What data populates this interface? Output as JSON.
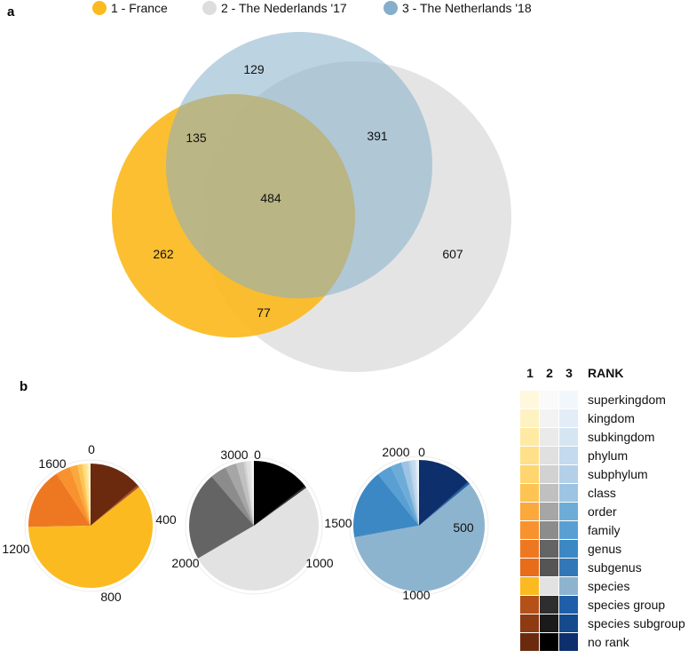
{
  "panels": {
    "a": "a",
    "b": "b"
  },
  "chart_data": [
    {
      "type": "venn",
      "title": "",
      "legend": [
        {
          "name": "1 - France",
          "color": "#FBBA20"
        },
        {
          "name": "2 - The Nederlands '17",
          "color": "#DDDDDD"
        },
        {
          "name": "3 - The Netherlands '18",
          "color": "#85AECB"
        }
      ],
      "regions": [
        {
          "sets": [
            "3"
          ],
          "value": 129
        },
        {
          "sets": [
            "1",
            "3"
          ],
          "value": 135
        },
        {
          "sets": [
            "2",
            "3"
          ],
          "value": 391
        },
        {
          "sets": [
            "1",
            "2",
            "3"
          ],
          "value": 484
        },
        {
          "sets": [
            "1"
          ],
          "value": 262
        },
        {
          "sets": [
            "2"
          ],
          "value": 607
        },
        {
          "sets": [
            "1",
            "2"
          ],
          "value": 77
        }
      ]
    },
    {
      "type": "pie",
      "name": "1 - France",
      "total": 1623,
      "ticks": [
        "0",
        "400",
        "800",
        "1200",
        "1600"
      ],
      "slices": [
        {
          "rank": "superkingdom",
          "value": 4,
          "color": "#FFF8DC"
        },
        {
          "rank": "kingdom",
          "value": 6,
          "color": "#FFF2C2"
        },
        {
          "rank": "subkingdom",
          "value": 6,
          "color": "#FFEAA3"
        },
        {
          "rank": "phylum",
          "value": 12,
          "color": "#FFE08A"
        },
        {
          "rank": "subphylum",
          "value": 8,
          "color": "#FFD56F"
        },
        {
          "rank": "class",
          "value": 20,
          "color": "#FDC453"
        },
        {
          "rank": "order",
          "value": 32,
          "color": "#FBA83C"
        },
        {
          "rank": "family",
          "value": 62,
          "color": "#F8922E"
        },
        {
          "rank": "genus",
          "value": 256,
          "color": "#EE7821"
        },
        {
          "rank": "subgenus",
          "value": 5,
          "color": "#E86D1B"
        },
        {
          "rank": "species",
          "value": 980,
          "color": "#FBBA20"
        },
        {
          "rank": "species group",
          "value": 6,
          "color": "#B4501A"
        },
        {
          "rank": "species subgroup",
          "value": 4,
          "color": "#8E3A12"
        },
        {
          "rank": "no rank",
          "value": 222,
          "color": "#6B2A0E"
        }
      ]
    },
    {
      "type": "pie",
      "name": "2 - The Nederlands '17",
      "total": 3200,
      "ticks": [
        "0",
        "1000",
        "2000",
        "3000"
      ],
      "slices": [
        {
          "rank": "superkingdom",
          "value": 8,
          "color": "#FAFAFA"
        },
        {
          "rank": "kingdom",
          "value": 12,
          "color": "#F3F3F3"
        },
        {
          "rank": "subkingdom",
          "value": 12,
          "color": "#EAEAEA"
        },
        {
          "rank": "phylum",
          "value": 30,
          "color": "#E0E0E0"
        },
        {
          "rank": "subphylum",
          "value": 20,
          "color": "#D2D2D2"
        },
        {
          "rank": "class",
          "value": 60,
          "color": "#C0C0C0"
        },
        {
          "rank": "order",
          "value": 90,
          "color": "#A6A6A6"
        },
        {
          "rank": "family",
          "value": 130,
          "color": "#8C8C8C"
        },
        {
          "rank": "genus",
          "value": 700,
          "color": "#646464"
        },
        {
          "rank": "subgenus",
          "value": 8,
          "color": "#555555"
        },
        {
          "rank": "species",
          "value": 1650,
          "color": "#E2E2E2"
        },
        {
          "rank": "species group",
          "value": 10,
          "color": "#2E2E2E"
        },
        {
          "rank": "species subgroup",
          "value": 6,
          "color": "#1A1A1A"
        },
        {
          "rank": "no rank",
          "value": 464,
          "color": "#000000"
        }
      ]
    },
    {
      "type": "pie",
      "name": "3 - The Netherlands '18",
      "total": 2200,
      "ticks": [
        "0",
        "500",
        "1000",
        "1500",
        "2000"
      ],
      "slices": [
        {
          "rank": "superkingdom",
          "value": 6,
          "color": "#F2F7FC"
        },
        {
          "rank": "kingdom",
          "value": 8,
          "color": "#E3EDF7"
        },
        {
          "rank": "subkingdom",
          "value": 8,
          "color": "#D6E5F2"
        },
        {
          "rank": "phylum",
          "value": 20,
          "color": "#C4DAEE"
        },
        {
          "rank": "subphylum",
          "value": 14,
          "color": "#B3D0E8"
        },
        {
          "rank": "class",
          "value": 40,
          "color": "#9DC4E2"
        },
        {
          "rank": "order",
          "value": 60,
          "color": "#6EACD8"
        },
        {
          "rank": "family",
          "value": 80,
          "color": "#5A9FD3"
        },
        {
          "rank": "genus",
          "value": 370,
          "color": "#3B88C4"
        },
        {
          "rank": "subgenus",
          "value": 6,
          "color": "#3278B8"
        },
        {
          "rank": "species",
          "value": 1280,
          "color": "#8DB4CF"
        },
        {
          "rank": "species group",
          "value": 8,
          "color": "#1F5EA8"
        },
        {
          "rank": "species subgroup",
          "value": 6,
          "color": "#154A8C"
        },
        {
          "rank": "no rank",
          "value": 294,
          "color": "#0D2F6B"
        }
      ]
    }
  ],
  "rank_table": {
    "headers": [
      "1",
      "2",
      "3",
      "RANK"
    ],
    "ranks": [
      "superkingdom",
      "kingdom",
      "subkingdom",
      "phylum",
      "subphylum",
      "class",
      "order",
      "family",
      "genus",
      "subgenus",
      "species",
      "species group",
      "species subgroup",
      "no rank"
    ]
  }
}
